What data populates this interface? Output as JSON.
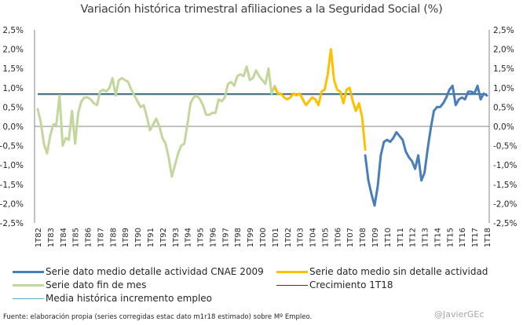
{
  "chart_data": {
    "type": "line",
    "title": "Variación histórica trimestral afiliaciones a la Seguridad Social (%)",
    "xlabel": "",
    "ylabel": "",
    "ylim": [
      -2.5,
      2.5
    ],
    "y_ticks": [
      "2,5%",
      "2,0%",
      "1,5%",
      "1,0%",
      "0,5%",
      "0,0%",
      "-0,5%",
      "-1,0%",
      "-1,5%",
      "-2,0%",
      "-2,5%"
    ],
    "y_tick_values": [
      2.5,
      2.0,
      1.5,
      1.0,
      0.5,
      0.0,
      -0.5,
      -1.0,
      -1.5,
      -2.0,
      -2.5
    ],
    "secondary_y_axis": true,
    "x_ticks": [
      "1T82",
      "1T83",
      "1T84",
      "1T85",
      "1T86",
      "1T87",
      "1T88",
      "1T89",
      "1T90",
      "1T91",
      "1T92",
      "1T93",
      "1T94",
      "1T95",
      "1T96",
      "1T97",
      "1T98",
      "1T99",
      "1T00",
      "1T01",
      "1T02",
      "1T03",
      "1T04",
      "1T05",
      "1T06",
      "1T07",
      "1T08",
      "1T09",
      "1T10",
      "1T11",
      "1T12",
      "1T13",
      "1T14",
      "1T15",
      "1T16",
      "1T17",
      "1T18"
    ],
    "x_unit": "quarter index from 1T82",
    "x_range": [
      0,
      144
    ],
    "grid": false,
    "legend_position": "bottom",
    "series": [
      {
        "name": "Serie dato medio detalle actividad CNAE 2009",
        "color": "#4a7ebb",
        "start_index": 105,
        "values": [
          -0.75,
          -1.4,
          -1.75,
          -2.05,
          -1.55,
          -0.75,
          -0.4,
          -0.35,
          -0.4,
          -0.3,
          -0.15,
          -0.25,
          -0.35,
          -0.65,
          -0.8,
          -0.9,
          -1.1,
          -0.75,
          -1.4,
          -1.2,
          -0.6,
          -0.05,
          0.4,
          0.5,
          0.5,
          0.6,
          0.75,
          0.95,
          1.05,
          0.55,
          0.7,
          0.75,
          0.7,
          0.9,
          0.9,
          0.85,
          1.05,
          0.7,
          0.85,
          0.8
        ]
      },
      {
        "name": "Serie dato medio sin detalle actividad",
        "color": "#ffc000",
        "start_index": 76,
        "values": [
          1.0,
          0.85,
          0.85,
          0.75,
          0.7,
          0.75,
          0.85,
          0.8,
          0.85,
          0.7,
          0.55,
          0.65,
          0.75,
          0.7,
          0.55,
          0.9,
          0.95,
          1.35,
          2.0,
          1.2,
          0.95,
          0.9,
          0.6,
          0.95,
          1.0,
          0.65,
          0.4,
          0.6,
          0.25,
          -0.6
        ]
      },
      {
        "name": "Serie dato fin de mes",
        "color": "#c3d69b",
        "start_index": 0,
        "values": [
          0.45,
          0.1,
          -0.45,
          -0.7,
          -0.25,
          0.05,
          0.05,
          0.8,
          -0.5,
          -0.3,
          -0.35,
          0.4,
          -0.45,
          0.35,
          0.65,
          0.75,
          0.75,
          0.7,
          0.6,
          0.55,
          0.9,
          0.95,
          0.9,
          1.0,
          1.25,
          0.8,
          1.2,
          1.25,
          1.2,
          1.15,
          0.95,
          0.8,
          0.65,
          0.5,
          0.55,
          0.25,
          -0.1,
          0.05,
          0.2,
          0.0,
          -0.3,
          -0.45,
          -0.8,
          -1.3,
          -1.0,
          -0.7,
          -0.5,
          -0.45,
          0.05,
          0.6,
          0.75,
          0.8,
          0.7,
          0.55,
          0.3,
          0.3,
          0.35,
          0.35,
          0.7,
          0.65,
          0.75,
          1.1,
          1.15,
          1.05,
          1.3,
          1.35,
          1.3,
          1.55,
          1.2,
          1.25,
          1.45,
          1.3,
          1.2,
          1.1,
          1.5,
          0.85,
          1.05,
          0.85
        ]
      },
      {
        "name": "Crecimiento 1T18",
        "color": "#c00000",
        "type": "constant",
        "value": 0.84
      },
      {
        "name": "Media histórica incremento empleo",
        "color": "#4bacc6",
        "type": "constant",
        "value": 0.82
      }
    ]
  },
  "legend": {
    "items": [
      {
        "label": "Serie dato medio detalle actividad CNAE 2009",
        "color": "#4a7ebb"
      },
      {
        "label": "Serie dato medio sin detalle actividad",
        "color": "#ffc000"
      },
      {
        "label": "Serie dato fin de mes",
        "color": "#c3d69b"
      },
      {
        "label": "Crecimiento 1T18",
        "color": "#c00000"
      },
      {
        "label": "Media histórica incremento empleo",
        "color": "#4bacc6"
      }
    ]
  },
  "footer": {
    "source": "Fuente: elaboración propia (series corregidas estac dato m1r18 estimado) sobre Mº Empleo.",
    "author": "@JavierGEc"
  }
}
